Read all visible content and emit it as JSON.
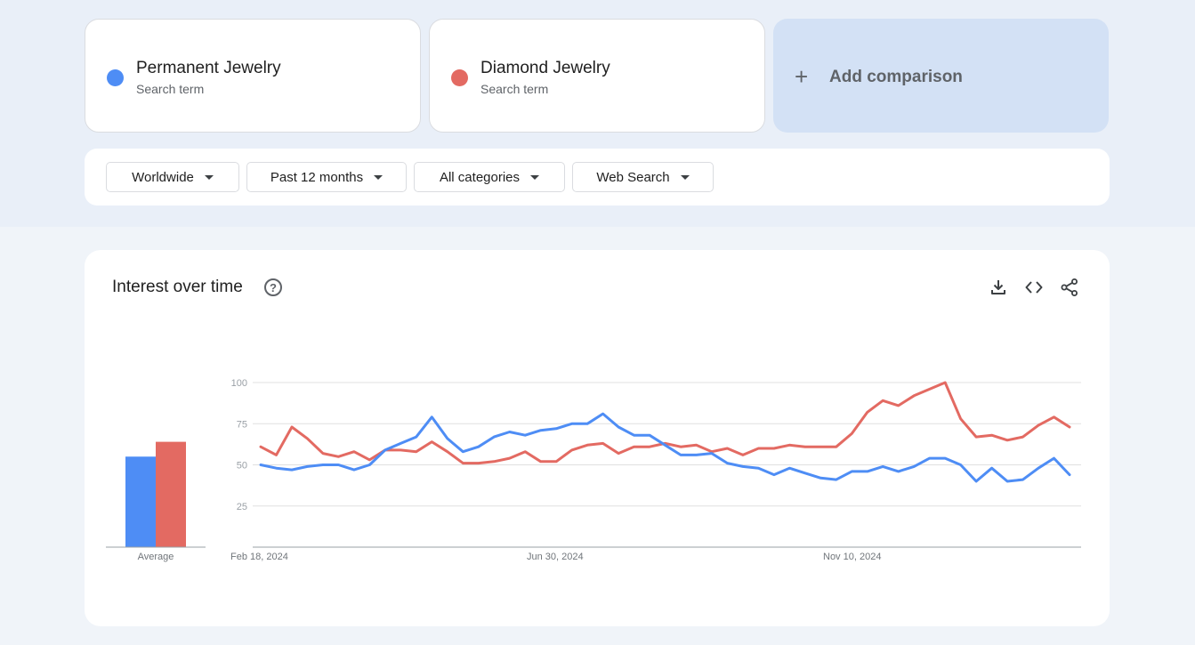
{
  "terms": [
    {
      "name": "Permanent Jewelry",
      "subtitle": "Search term",
      "color": "#4e8df5"
    },
    {
      "name": "Diamond Jewelry",
      "subtitle": "Search term",
      "color": "#e36a62"
    }
  ],
  "add_comparison": {
    "icon": "plus-icon",
    "label": "Add comparison"
  },
  "filters": [
    {
      "label": "Worldwide",
      "icon": "caret-down-icon"
    },
    {
      "label": "Past 12 months",
      "icon": "caret-down-icon"
    },
    {
      "label": "All categories",
      "icon": "caret-down-icon"
    },
    {
      "label": "Web Search",
      "icon": "caret-down-icon"
    }
  ],
  "chart_card": {
    "title": "Interest over time",
    "help_icon": "help-icon",
    "tools": [
      "download-icon",
      "embed-code-icon",
      "share-icon"
    ]
  },
  "chart_data": [
    {
      "type": "bar",
      "categories": [
        "Average"
      ],
      "series": [
        {
          "name": "Permanent Jewelry",
          "values": [
            55
          ]
        },
        {
          "name": "Diamond Jewelry",
          "values": [
            64
          ]
        }
      ],
      "ylim": [
        0,
        100
      ]
    },
    {
      "type": "line",
      "x_tick_labels": [
        "Feb 18, 2024",
        "Jun 30, 2024",
        "Nov 10, 2024"
      ],
      "y_ticks": [
        25,
        50,
        75,
        100
      ],
      "ylim": [
        0,
        100
      ],
      "grid": true,
      "series": [
        {
          "name": "Permanent Jewelry",
          "color": "#4e8df5",
          "values": [
            50,
            48,
            47,
            49,
            50,
            50,
            47,
            50,
            59,
            63,
            67,
            79,
            66,
            58,
            61,
            67,
            70,
            68,
            71,
            72,
            75,
            75,
            81,
            73,
            68,
            68,
            62,
            56,
            56,
            57,
            51,
            49,
            48,
            44,
            48,
            45,
            42,
            41,
            46,
            46,
            49,
            46,
            49,
            54,
            54,
            50,
            40,
            48,
            40,
            41,
            48,
            54,
            44
          ]
        },
        {
          "name": "Diamond Jewelry",
          "color": "#e36a62",
          "values": [
            61,
            56,
            73,
            66,
            57,
            55,
            58,
            53,
            59,
            59,
            58,
            64,
            58,
            51,
            51,
            52,
            54,
            58,
            52,
            52,
            59,
            62,
            63,
            57,
            61,
            61,
            63,
            61,
            62,
            58,
            60,
            56,
            60,
            60,
            62,
            61,
            61,
            61,
            69,
            82,
            89,
            86,
            92,
            96,
            100,
            78,
            67,
            68,
            65,
            67,
            74,
            79,
            73
          ]
        }
      ]
    }
  ]
}
